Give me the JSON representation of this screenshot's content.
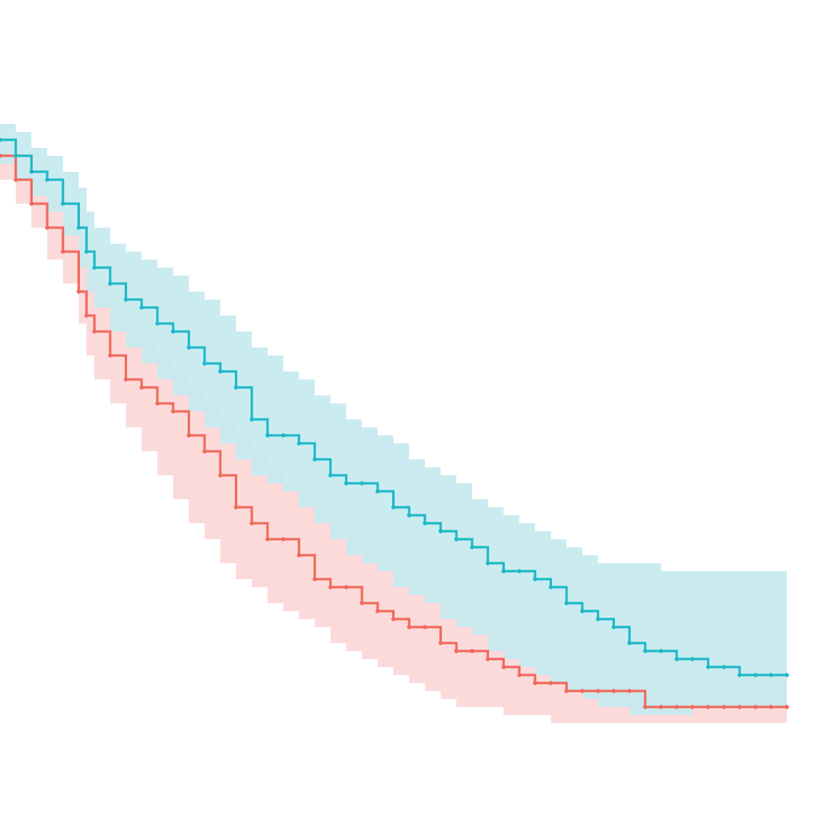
{
  "chart_data": {
    "type": "line",
    "step": true,
    "grid": false,
    "xlim": [
      0,
      1
    ],
    "ylim": [
      0,
      1
    ],
    "colors": {
      "teal": "#1fb8c6",
      "teal_band": "#c4eaef",
      "red": "#f0695c",
      "red_band": "#fcd6d6",
      "overlap": "#b9b9b9"
    },
    "series": [
      {
        "color": "teal",
        "x": [
          0.0,
          0.02,
          0.04,
          0.06,
          0.08,
          0.1,
          0.11,
          0.12,
          0.14,
          0.16,
          0.18,
          0.2,
          0.22,
          0.24,
          0.26,
          0.28,
          0.3,
          0.32,
          0.34,
          0.36,
          0.38,
          0.4,
          0.42,
          0.44,
          0.46,
          0.48,
          0.5,
          0.52,
          0.54,
          0.56,
          0.58,
          0.6,
          0.62,
          0.64,
          0.66,
          0.68,
          0.7,
          0.72,
          0.74,
          0.76,
          0.78,
          0.8,
          0.82,
          0.84,
          0.86,
          0.88,
          0.9,
          0.92,
          0.94,
          0.96,
          0.98,
          1.0
        ],
        "y": [
          0.85,
          0.83,
          0.81,
          0.8,
          0.77,
          0.74,
          0.71,
          0.69,
          0.67,
          0.65,
          0.64,
          0.62,
          0.61,
          0.59,
          0.57,
          0.56,
          0.54,
          0.5,
          0.48,
          0.48,
          0.47,
          0.45,
          0.43,
          0.42,
          0.42,
          0.41,
          0.39,
          0.38,
          0.37,
          0.36,
          0.35,
          0.34,
          0.32,
          0.31,
          0.31,
          0.3,
          0.29,
          0.27,
          0.26,
          0.25,
          0.24,
          0.22,
          0.21,
          0.21,
          0.2,
          0.2,
          0.19,
          0.19,
          0.18,
          0.18,
          0.18,
          0.18
        ],
        "lower": [
          0.82,
          0.8,
          0.78,
          0.76,
          0.73,
          0.69,
          0.66,
          0.64,
          0.61,
          0.59,
          0.57,
          0.55,
          0.53,
          0.51,
          0.49,
          0.47,
          0.45,
          0.43,
          0.42,
          0.41,
          0.39,
          0.37,
          0.35,
          0.33,
          0.32,
          0.31,
          0.29,
          0.28,
          0.27,
          0.25,
          0.24,
          0.23,
          0.21,
          0.2,
          0.19,
          0.18,
          0.17,
          0.16,
          0.15,
          0.14,
          0.14,
          0.13,
          0.13,
          0.13,
          0.13,
          0.14,
          0.14,
          0.14,
          0.14,
          0.14,
          0.14,
          0.14
        ],
        "upper": [
          0.87,
          0.86,
          0.84,
          0.83,
          0.81,
          0.79,
          0.76,
          0.74,
          0.72,
          0.71,
          0.7,
          0.69,
          0.68,
          0.66,
          0.65,
          0.63,
          0.61,
          0.59,
          0.58,
          0.56,
          0.55,
          0.53,
          0.52,
          0.5,
          0.49,
          0.48,
          0.47,
          0.45,
          0.44,
          0.43,
          0.42,
          0.4,
          0.39,
          0.38,
          0.37,
          0.36,
          0.35,
          0.34,
          0.33,
          0.32,
          0.32,
          0.32,
          0.32,
          0.31,
          0.31,
          0.31,
          0.31,
          0.31,
          0.31,
          0.31,
          0.31,
          0.31
        ]
      },
      {
        "color": "red",
        "x": [
          0.0,
          0.02,
          0.04,
          0.06,
          0.08,
          0.1,
          0.11,
          0.12,
          0.14,
          0.16,
          0.18,
          0.2,
          0.22,
          0.24,
          0.26,
          0.28,
          0.3,
          0.32,
          0.34,
          0.36,
          0.38,
          0.4,
          0.42,
          0.44,
          0.46,
          0.48,
          0.5,
          0.52,
          0.54,
          0.56,
          0.58,
          0.6,
          0.62,
          0.64,
          0.66,
          0.68,
          0.7,
          0.72,
          0.74,
          0.76,
          0.78,
          0.8,
          0.82,
          0.84,
          0.86,
          0.88,
          0.9,
          0.92,
          0.94,
          0.96,
          0.98,
          1.0
        ],
        "y": [
          0.83,
          0.8,
          0.77,
          0.74,
          0.71,
          0.66,
          0.63,
          0.61,
          0.58,
          0.55,
          0.54,
          0.52,
          0.51,
          0.48,
          0.46,
          0.43,
          0.39,
          0.37,
          0.35,
          0.35,
          0.33,
          0.3,
          0.29,
          0.29,
          0.27,
          0.26,
          0.25,
          0.24,
          0.24,
          0.22,
          0.21,
          0.21,
          0.2,
          0.19,
          0.18,
          0.17,
          0.17,
          0.16,
          0.16,
          0.16,
          0.16,
          0.16,
          0.14,
          0.14,
          0.14,
          0.14,
          0.14,
          0.14,
          0.14,
          0.14,
          0.14,
          0.14
        ],
        "lower": [
          0.8,
          0.77,
          0.74,
          0.7,
          0.67,
          0.62,
          0.58,
          0.55,
          0.52,
          0.49,
          0.46,
          0.43,
          0.4,
          0.37,
          0.35,
          0.32,
          0.3,
          0.29,
          0.27,
          0.26,
          0.25,
          0.24,
          0.22,
          0.21,
          0.2,
          0.19,
          0.18,
          0.17,
          0.16,
          0.15,
          0.14,
          0.14,
          0.14,
          0.13,
          0.13,
          0.13,
          0.12,
          0.12,
          0.12,
          0.12,
          0.12,
          0.12,
          0.12,
          0.12,
          0.12,
          0.12,
          0.12,
          0.12,
          0.12,
          0.12,
          0.12,
          0.12
        ],
        "upper": [
          0.85,
          0.82,
          0.8,
          0.78,
          0.75,
          0.72,
          0.69,
          0.67,
          0.64,
          0.61,
          0.6,
          0.58,
          0.56,
          0.54,
          0.52,
          0.5,
          0.48,
          0.46,
          0.44,
          0.42,
          0.4,
          0.38,
          0.37,
          0.36,
          0.35,
          0.34,
          0.32,
          0.31,
          0.3,
          0.29,
          0.28,
          0.26,
          0.25,
          0.24,
          0.23,
          0.22,
          0.21,
          0.2,
          0.19,
          0.18,
          0.18,
          0.18,
          0.18,
          0.17,
          0.17,
          0.17,
          0.17,
          0.17,
          0.17,
          0.17,
          0.17,
          0.17
        ]
      }
    ]
  }
}
